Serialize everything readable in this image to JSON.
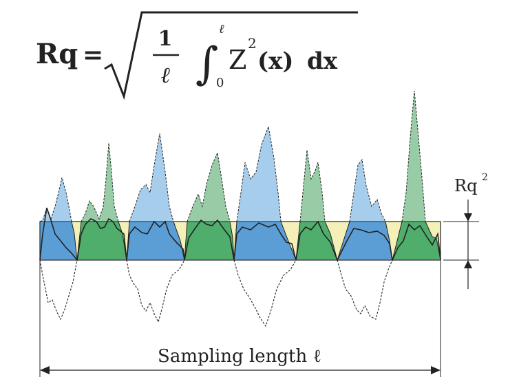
{
  "formula": {
    "lhs": "Rq",
    "equals": "=",
    "numerator": "1",
    "denominator": "ℓ",
    "integral_upper": "ℓ",
    "integral_lower": "0",
    "integrand": "Z",
    "exponent": "2",
    "argument": "(x)",
    "differential": "dx"
  },
  "labels": {
    "rq_squared": "Rq",
    "rq_squared_exp": "2",
    "sampling_length": "Sampling length ℓ"
  },
  "colors": {
    "peak_blue": "#a7cdec",
    "peak_green": "#98cca6",
    "band_yellow": "#f4f0b8",
    "band_blue": "#5b9ed6",
    "band_green": "#4fae6c",
    "outline": "#222222"
  }
}
